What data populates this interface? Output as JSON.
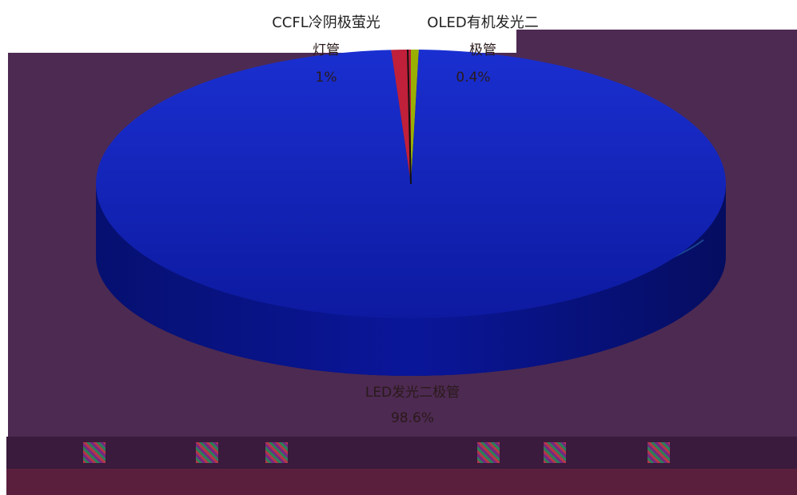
{
  "chart_data": {
    "type": "pie",
    "categories": [
      "CCFL冷阴极萤光灯管",
      "OLED有机发光二极管",
      "LED发光二极管"
    ],
    "values": [
      1.0,
      0.4,
      98.6
    ],
    "slice_labels": [
      {
        "name_lines": [
          "CCFL冷阴极萤光",
          "灯管"
        ],
        "percent": "1%"
      },
      {
        "name_lines": [
          "OLED有机发光二",
          "极管"
        ],
        "percent": "0.4%"
      },
      {
        "name_lines": [
          "LED发光二极管"
        ],
        "percent": "98.6%"
      }
    ],
    "colors": [
      "#c0203a",
      "#9ab000",
      "#0a1ea8"
    ],
    "legend": "none",
    "grid": false
  }
}
